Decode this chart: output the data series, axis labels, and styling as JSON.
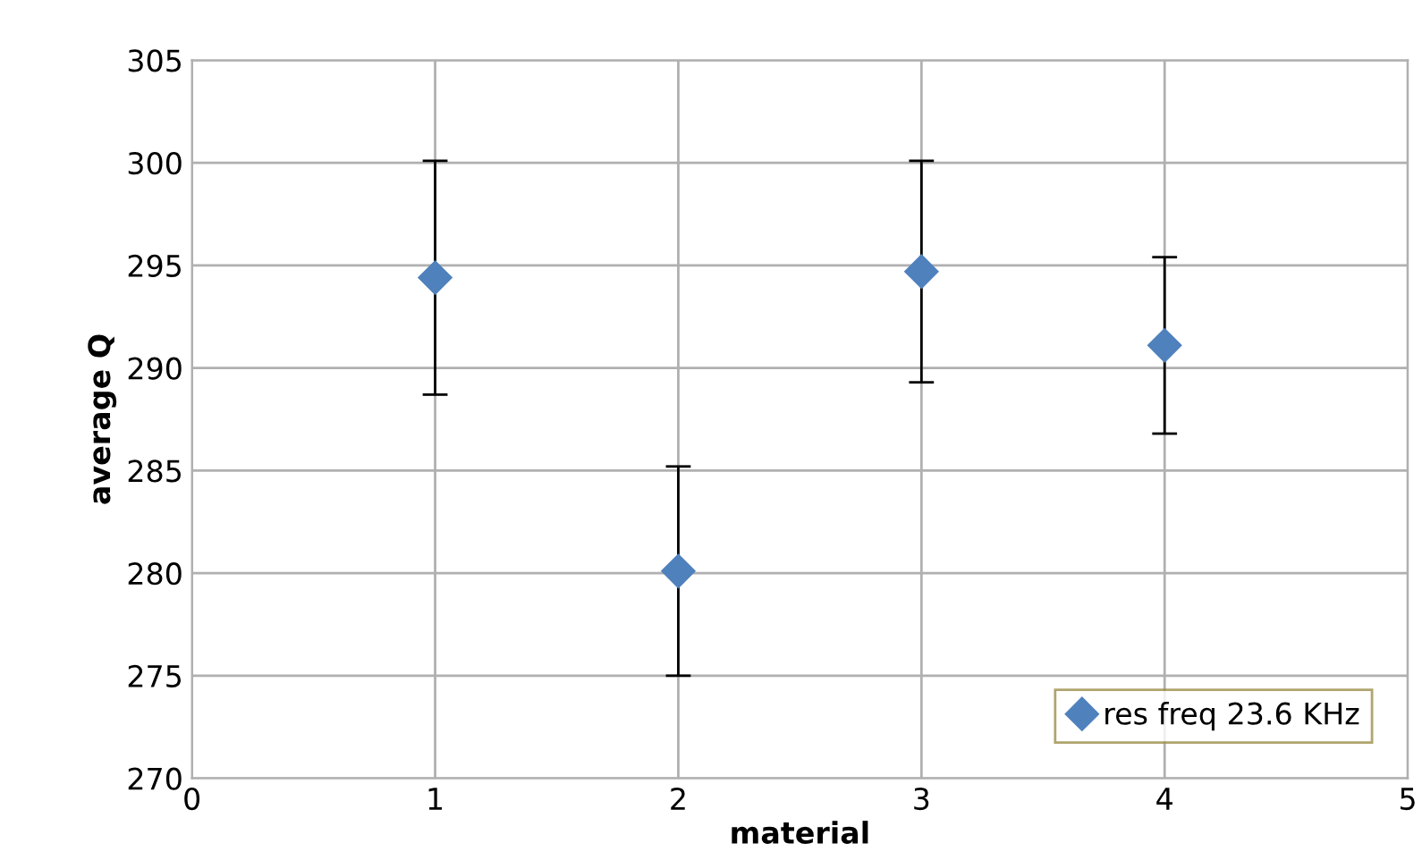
{
  "chart_data": {
    "type": "scatter",
    "xlabel": "material",
    "ylabel": "average Q",
    "x": [
      1,
      2,
      3,
      4
    ],
    "series": [
      {
        "name": "res freq 23.6 KHz",
        "color": "#4f81bd",
        "values": [
          294.4,
          280.1,
          294.7,
          291.1
        ],
        "errors": [
          5.7,
          5.1,
          5.4,
          4.3
        ]
      }
    ],
    "xlim": [
      0,
      5
    ],
    "xticks": [
      0,
      1,
      2,
      3,
      4,
      5
    ],
    "ylim": [
      270,
      305
    ],
    "yticks": [
      270,
      275,
      280,
      285,
      290,
      295,
      300,
      305
    ],
    "grid": true,
    "legend": "bottom right",
    "marker": "diamond"
  }
}
